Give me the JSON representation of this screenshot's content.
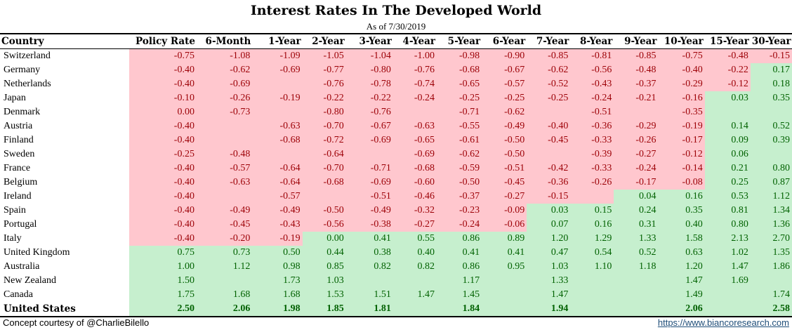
{
  "header": {
    "title": "Interest Rates In The Developed World",
    "subtitle": "As of 7/30/2019"
  },
  "footer": {
    "credit": "Concept courtesy of @CharlieBilello",
    "link": "https://www.biancoresearch.com"
  },
  "colors": {
    "negative_fill": "#ffc7ce",
    "negative_text": "#9c0006",
    "positive_fill": "#c6efce",
    "positive_text": "#006100"
  },
  "chart_data": {
    "type": "table",
    "title": "Interest Rates In The Developed World",
    "subtitle": "As of 7/30/2019",
    "columns": [
      "Country",
      "Policy Rate",
      "6-Month",
      "1-Year",
      "2-Year",
      "3-Year",
      "4-Year",
      "5-Year",
      "6-Year",
      "7-Year",
      "8-Year",
      "9-Year",
      "10-Year",
      "15-Year",
      "30-Year"
    ],
    "rows": [
      {
        "country": "Switzerland",
        "values": [
          "-0.75",
          "-1.08",
          "-1.09",
          "-1.05",
          "-1.04",
          "-1.00",
          "-0.98",
          "-0.90",
          "-0.85",
          "-0.81",
          "-0.85",
          "-0.75",
          "-0.48",
          "-0.15"
        ]
      },
      {
        "country": "Germany",
        "values": [
          "-0.40",
          "-0.62",
          "-0.69",
          "-0.77",
          "-0.80",
          "-0.76",
          "-0.68",
          "-0.67",
          "-0.62",
          "-0.56",
          "-0.48",
          "-0.40",
          "-0.22",
          "0.17"
        ]
      },
      {
        "country": "Netherlands",
        "values": [
          "-0.40",
          "-0.69",
          "",
          "-0.76",
          "-0.78",
          "-0.74",
          "-0.65",
          "-0.57",
          "-0.52",
          "-0.43",
          "-0.37",
          "-0.29",
          "-0.12",
          "0.18"
        ]
      },
      {
        "country": "Japan",
        "values": [
          "-0.10",
          "-0.26",
          "-0.19",
          "-0.22",
          "-0.22",
          "-0.24",
          "-0.25",
          "-0.25",
          "-0.25",
          "-0.24",
          "-0.21",
          "-0.16",
          "0.03",
          "0.35"
        ]
      },
      {
        "country": "Denmark",
        "values": [
          "0.00",
          "-0.73",
          "",
          "-0.80",
          "-0.76",
          "",
          "-0.71",
          "-0.62",
          "",
          "-0.51",
          "",
          "-0.35",
          "",
          ""
        ]
      },
      {
        "country": "Austria",
        "values": [
          "-0.40",
          "",
          "-0.63",
          "-0.70",
          "-0.67",
          "-0.63",
          "-0.55",
          "-0.49",
          "-0.40",
          "-0.36",
          "-0.29",
          "-0.19",
          "0.14",
          "0.52"
        ]
      },
      {
        "country": "Finland",
        "values": [
          "-0.40",
          "",
          "-0.68",
          "-0.72",
          "-0.69",
          "-0.65",
          "-0.61",
          "-0.50",
          "-0.45",
          "-0.33",
          "-0.26",
          "-0.17",
          "0.09",
          "0.39"
        ]
      },
      {
        "country": "Sweden",
        "values": [
          "-0.25",
          "-0.48",
          "",
          "-0.64",
          "",
          "-0.69",
          "-0.62",
          "-0.50",
          "",
          "-0.39",
          "-0.27",
          "-0.12",
          "0.06",
          ""
        ]
      },
      {
        "country": "France",
        "values": [
          "-0.40",
          "-0.57",
          "-0.64",
          "-0.70",
          "-0.71",
          "-0.68",
          "-0.59",
          "-0.51",
          "-0.42",
          "-0.33",
          "-0.24",
          "-0.14",
          "0.21",
          "0.80"
        ]
      },
      {
        "country": "Belgium",
        "values": [
          "-0.40",
          "-0.63",
          "-0.64",
          "-0.68",
          "-0.69",
          "-0.60",
          "-0.50",
          "-0.45",
          "-0.36",
          "-0.26",
          "-0.17",
          "-0.08",
          "0.25",
          "0.87"
        ]
      },
      {
        "country": "Ireland",
        "values": [
          "-0.40",
          "",
          "-0.57",
          "",
          "-0.51",
          "-0.46",
          "-0.37",
          "-0.27",
          "-0.15",
          "",
          "0.04",
          "0.16",
          "0.53",
          "1.12"
        ]
      },
      {
        "country": "Spain",
        "values": [
          "-0.40",
          "-0.49",
          "-0.49",
          "-0.50",
          "-0.49",
          "-0.32",
          "-0.23",
          "-0.09",
          "0.03",
          "0.15",
          "0.24",
          "0.35",
          "0.81",
          "1.34"
        ]
      },
      {
        "country": "Portugal",
        "values": [
          "-0.40",
          "-0.45",
          "-0.43",
          "-0.56",
          "-0.38",
          "-0.27",
          "-0.24",
          "-0.06",
          "0.07",
          "0.16",
          "0.31",
          "0.40",
          "0.80",
          "1.36"
        ]
      },
      {
        "country": "Italy",
        "values": [
          "-0.40",
          "-0.20",
          "-0.19",
          "0.00",
          "0.41",
          "0.55",
          "0.86",
          "0.89",
          "1.20",
          "1.29",
          "1.33",
          "1.58",
          "2.13",
          "2.70"
        ]
      },
      {
        "country": "United Kingdom",
        "values": [
          "0.75",
          "0.73",
          "0.50",
          "0.44",
          "0.38",
          "0.40",
          "0.41",
          "0.41",
          "0.47",
          "0.54",
          "0.52",
          "0.63",
          "1.02",
          "1.35"
        ]
      },
      {
        "country": "Australia",
        "values": [
          "1.00",
          "1.12",
          "0.98",
          "0.85",
          "0.82",
          "0.82",
          "0.86",
          "0.95",
          "1.03",
          "1.10",
          "1.18",
          "1.20",
          "1.47",
          "1.86"
        ]
      },
      {
        "country": "New Zealand",
        "values": [
          "1.50",
          "",
          "1.73",
          "1.03",
          "",
          "",
          "1.17",
          "",
          "1.33",
          "",
          "",
          "1.47",
          "1.69",
          ""
        ]
      },
      {
        "country": "Canada",
        "values": [
          "1.75",
          "1.68",
          "1.68",
          "1.53",
          "1.51",
          "1.47",
          "1.45",
          "",
          "1.47",
          "",
          "",
          "1.49",
          "",
          "1.74"
        ]
      },
      {
        "country": "United States",
        "values": [
          "2.50",
          "2.06",
          "1.98",
          "1.85",
          "1.81",
          "",
          "1.84",
          "",
          "1.94",
          "",
          "",
          "2.06",
          "",
          "2.58"
        ]
      }
    ],
    "row_fill": [
      [
        "n",
        "n",
        "n",
        "n",
        "n",
        "n",
        "n",
        "n",
        "n",
        "n",
        "n",
        "n",
        "n",
        "n"
      ],
      [
        "n",
        "n",
        "n",
        "n",
        "n",
        "n",
        "n",
        "n",
        "n",
        "n",
        "n",
        "n",
        "n",
        "p"
      ],
      [
        "n",
        "n",
        "n",
        "n",
        "n",
        "n",
        "n",
        "n",
        "n",
        "n",
        "n",
        "n",
        "n",
        "p"
      ],
      [
        "n",
        "n",
        "n",
        "n",
        "n",
        "n",
        "n",
        "n",
        "n",
        "n",
        "n",
        "n",
        "p",
        "p"
      ],
      [
        "n",
        "n",
        "n",
        "n",
        "n",
        "n",
        "n",
        "n",
        "n",
        "n",
        "n",
        "n",
        "p",
        "p"
      ],
      [
        "n",
        "n",
        "n",
        "n",
        "n",
        "n",
        "n",
        "n",
        "n",
        "n",
        "n",
        "n",
        "p",
        "p"
      ],
      [
        "n",
        "n",
        "n",
        "n",
        "n",
        "n",
        "n",
        "n",
        "n",
        "n",
        "n",
        "n",
        "p",
        "p"
      ],
      [
        "n",
        "n",
        "n",
        "n",
        "n",
        "n",
        "n",
        "n",
        "n",
        "n",
        "n",
        "n",
        "p",
        "p"
      ],
      [
        "n",
        "n",
        "n",
        "n",
        "n",
        "n",
        "n",
        "n",
        "n",
        "n",
        "n",
        "n",
        "p",
        "p"
      ],
      [
        "n",
        "n",
        "n",
        "n",
        "n",
        "n",
        "n",
        "n",
        "n",
        "n",
        "n",
        "n",
        "p",
        "p"
      ],
      [
        "n",
        "n",
        "n",
        "n",
        "n",
        "n",
        "n",
        "n",
        "n",
        "n",
        "p",
        "p",
        "p",
        "p"
      ],
      [
        "n",
        "n",
        "n",
        "n",
        "n",
        "n",
        "n",
        "n",
        "p",
        "p",
        "p",
        "p",
        "p",
        "p"
      ],
      [
        "n",
        "n",
        "n",
        "n",
        "n",
        "n",
        "n",
        "n",
        "p",
        "p",
        "p",
        "p",
        "p",
        "p"
      ],
      [
        "n",
        "n",
        "n",
        "p",
        "p",
        "p",
        "p",
        "p",
        "p",
        "p",
        "p",
        "p",
        "p",
        "p"
      ],
      [
        "p",
        "p",
        "p",
        "p",
        "p",
        "p",
        "p",
        "p",
        "p",
        "p",
        "p",
        "p",
        "p",
        "p"
      ],
      [
        "p",
        "p",
        "p",
        "p",
        "p",
        "p",
        "p",
        "p",
        "p",
        "p",
        "p",
        "p",
        "p",
        "p"
      ],
      [
        "p",
        "p",
        "p",
        "p",
        "p",
        "p",
        "p",
        "p",
        "p",
        "p",
        "p",
        "p",
        "p",
        "p"
      ],
      [
        "p",
        "p",
        "p",
        "p",
        "p",
        "p",
        "p",
        "p",
        "p",
        "p",
        "p",
        "p",
        "p",
        "p"
      ],
      [
        "p",
        "p",
        "p",
        "p",
        "p",
        "p",
        "p",
        "p",
        "p",
        "p",
        "p",
        "p",
        "p",
        "p"
      ]
    ]
  }
}
